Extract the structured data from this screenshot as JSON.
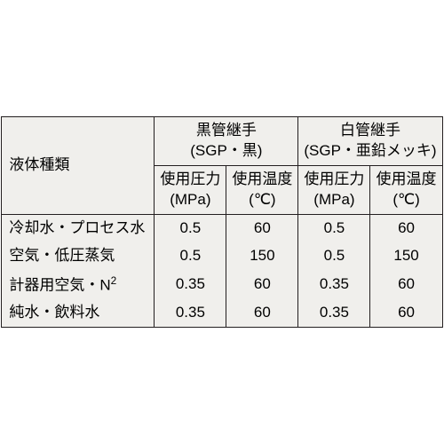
{
  "table": {
    "background_color": "#f0efec",
    "border_color": "#231f20",
    "font_size": 17,
    "header": {
      "liquid_type_label_l1": "液体種類",
      "group_black_l1": "黒管継手",
      "group_black_l2": "(SGP・黒)",
      "group_white_l1": "白管継手",
      "group_white_l2": "(SGP・亜鉛メッキ)",
      "pressure_label_l1": "使用圧力",
      "pressure_label_l2": "(MPa)",
      "temp_label_l1": "使用温度",
      "temp_label_l2": "(℃)"
    },
    "rows": [
      {
        "label": "冷却水・プロセス水",
        "black_pressure": "0.5",
        "black_temp": "60",
        "white_pressure": "0.5",
        "white_temp": "60"
      },
      {
        "label": "空気・低圧蒸気",
        "black_pressure": "0.5",
        "black_temp": "150",
        "white_pressure": "0.5",
        "white_temp": "150"
      },
      {
        "label_prefix": "計器用空気・N",
        "label_sup": "2",
        "black_pressure": "0.35",
        "black_temp": "60",
        "white_pressure": "0.35",
        "white_temp": "60"
      },
      {
        "label": "純水・飲料水",
        "black_pressure": "0.35",
        "black_temp": "60",
        "white_pressure": "0.35",
        "white_temp": "60"
      }
    ]
  }
}
